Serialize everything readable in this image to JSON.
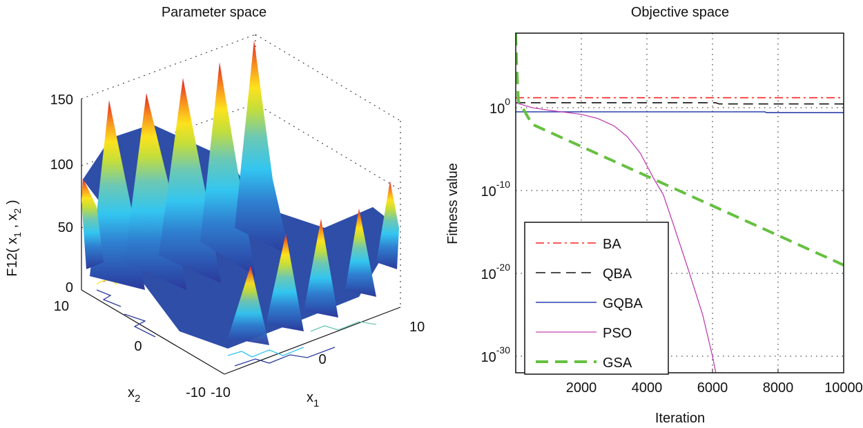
{
  "chart_data": [
    {
      "type": "surface",
      "title": "Parameter space",
      "zlabel_main": "F12( x",
      "zlabel_sub1": "1",
      "zlabel_mid": " , x",
      "zlabel_sub2": "2",
      "zlabel_end": " )",
      "xlabel": "x",
      "xlabel_sub": "1",
      "ylabel": "x",
      "ylabel_sub": "2",
      "z_ticks": [
        "0",
        "50",
        "100",
        "150"
      ],
      "x_ticks": [
        "-10",
        "0",
        "10"
      ],
      "y_ticks": [
        "-10",
        "0",
        "10"
      ],
      "zlim": [
        0,
        150
      ],
      "xlim": [
        -10,
        10
      ],
      "ylim": [
        -10,
        10
      ],
      "colormap": [
        "#2b3a9c",
        "#2a8fd6",
        "#33c5f0",
        "#6cc8b4",
        "#c5de3a",
        "#fde21d",
        "#f8931f",
        "#e31e24"
      ]
    },
    {
      "type": "line",
      "title": "Objective space",
      "xlabel": "Iteration",
      "ylabel": "Fitness value",
      "yscale": "log",
      "xlim": [
        0,
        10000
      ],
      "ylim_exp": [
        -32,
        9
      ],
      "x_ticks": [
        "2000",
        "4000",
        "6000",
        "8000",
        "10000"
      ],
      "x_tick_values": [
        2000,
        4000,
        6000,
        8000,
        10000
      ],
      "y_ticks": [
        {
          "base": "10",
          "exp": "0",
          "value": 0
        },
        {
          "base": "10",
          "exp": "-10",
          "value": -10
        },
        {
          "base": "10",
          "exp": "-20",
          "value": -20
        },
        {
          "base": "10",
          "exp": "-30",
          "value": -30
        }
      ],
      "grid": true,
      "legend_position": "bottom-left",
      "series": [
        {
          "name": "BA",
          "color": "#ff2020",
          "dash": "dashdot",
          "x": [
            0,
            10000
          ],
          "log10_y": [
            1.2,
            1.2
          ]
        },
        {
          "name": "QBA",
          "color": "#111111",
          "dash": "dash",
          "x": [
            0,
            6100,
            6200,
            10000
          ],
          "log10_y": [
            0.6,
            0.6,
            0.45,
            0.45
          ]
        },
        {
          "name": "GQBA",
          "color": "#2a3ea8",
          "dash": "solid",
          "x": [
            0,
            7600,
            7650,
            10000
          ],
          "log10_y": [
            -0.5,
            -0.5,
            -0.6,
            -0.6
          ]
        },
        {
          "name": "PSO",
          "color": "#c040b0",
          "dash": "solid",
          "x": [
            0,
            500,
            1000,
            2000,
            2500,
            3000,
            3400,
            3800,
            4200,
            4500,
            4800,
            5300,
            5700,
            6000,
            6100,
            6300
          ],
          "log10_y": [
            0.6,
            0,
            -0.3,
            -0.8,
            -1.3,
            -2.2,
            -3.5,
            -5.5,
            -8.5,
            -10.5,
            -14,
            -20,
            -25,
            -30,
            -32,
            -32
          ]
        },
        {
          "name": "GSA",
          "color": "#66c040",
          "dash": "longdash",
          "x": [
            0,
            30,
            80,
            150,
            500,
            10000
          ],
          "log10_y": [
            9,
            5,
            0.8,
            0.4,
            -2,
            -19
          ]
        }
      ]
    }
  ]
}
